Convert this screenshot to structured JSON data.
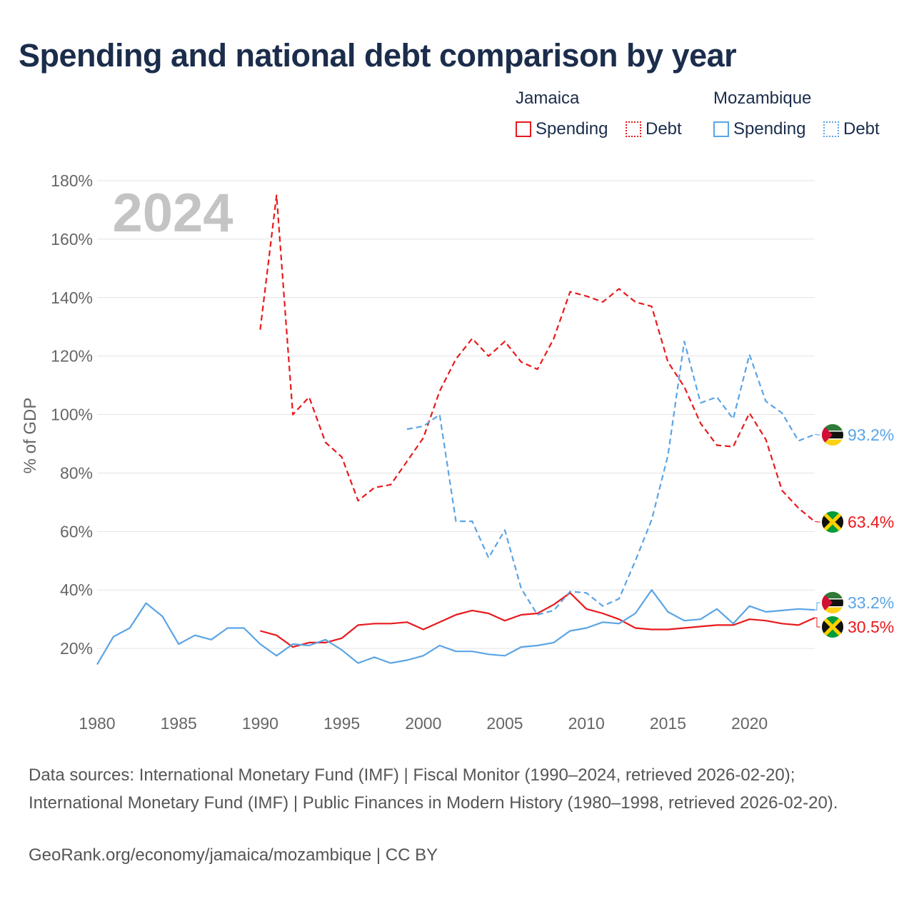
{
  "title": "Spending and national debt comparison by year",
  "legend": {
    "jamaica": {
      "label": "Jamaica",
      "spending": "Spending",
      "debt": "Debt"
    },
    "mozambique": {
      "label": "Mozambique",
      "spending": "Spending",
      "debt": "Debt"
    }
  },
  "colors": {
    "jamaica": "#e8191c",
    "mozambique": "#5ba4e5",
    "text": "#1b2d4b",
    "axis": "#666666",
    "grid": "#e3e3e3",
    "year": "#c4c4c4"
  },
  "footer": {
    "sources": "Data sources: International Monetary Fund (IMF) | Fiscal Monitor (1990–2024, retrieved 2026-02-20); International Monetary Fund (IMF) | Public Finances in Modern History (1980–1998, retrieved 2026-02-20).",
    "credit": "GeoRank.org/economy/jamaica/mozambique | CC BY"
  },
  "chart_data": {
    "type": "line",
    "ylabel": "% of GDP",
    "xlim": [
      1980,
      2024
    ],
    "ylim": [
      0,
      180
    ],
    "yticks": [
      20,
      40,
      60,
      80,
      100,
      120,
      140,
      160,
      180
    ],
    "ytick_labels": [
      "20%",
      "40%",
      "60%",
      "80%",
      "100%",
      "120%",
      "140%",
      "160%",
      "180%"
    ],
    "xticks": [
      1980,
      1985,
      1990,
      1995,
      2000,
      2005,
      2010,
      2015,
      2020
    ],
    "xtick_labels": [
      "1980",
      "1985",
      "1990",
      "1995",
      "2000",
      "2005",
      "2010",
      "2015",
      "2020"
    ],
    "year_label": "2024",
    "series": [
      {
        "name": "Jamaica Debt",
        "country": "jamaica",
        "style": "dashed",
        "x": [
          1990,
          1991,
          1992,
          1993,
          1994,
          1995,
          1996,
          1997,
          1998,
          1999,
          2000,
          2001,
          2002,
          2003,
          2004,
          2005,
          2006,
          2007,
          2008,
          2009,
          2010,
          2011,
          2012,
          2013,
          2014,
          2015,
          2016,
          2017,
          2018,
          2019,
          2020,
          2021,
          2022,
          2023,
          2024
        ],
        "values": [
          129,
          175,
          100,
          106,
          90.5,
          85.5,
          70.5,
          75,
          76,
          84,
          92,
          108,
          119,
          126,
          120,
          125,
          118,
          115.5,
          126,
          142,
          140.5,
          138.5,
          143,
          138.5,
          137,
          118,
          109.5,
          97,
          89.5,
          89,
          100.5,
          91.5,
          74,
          68,
          63.4
        ],
        "end_label": "63.4%"
      },
      {
        "name": "Jamaica Spending",
        "country": "jamaica",
        "style": "solid",
        "x": [
          1990,
          1991,
          1992,
          1993,
          1994,
          1995,
          1996,
          1997,
          1998,
          1999,
          2000,
          2001,
          2002,
          2003,
          2004,
          2005,
          2006,
          2007,
          2008,
          2009,
          2010,
          2011,
          2012,
          2013,
          2014,
          2015,
          2016,
          2017,
          2018,
          2019,
          2020,
          2021,
          2022,
          2023,
          2024
        ],
        "values": [
          26,
          24.5,
          20.5,
          22,
          22,
          23.5,
          28,
          28.5,
          28.5,
          29,
          26.5,
          29,
          31.5,
          33,
          32,
          29.5,
          31.5,
          32,
          35,
          39,
          33.5,
          32,
          30,
          27,
          26.5,
          26.5,
          27,
          27.5,
          28,
          28,
          30,
          29.5,
          28.5,
          28,
          30.5
        ],
        "end_label": "30.5%"
      },
      {
        "name": "Mozambique Debt",
        "country": "mozambique",
        "style": "dashed",
        "x": [
          1999,
          2000,
          2001,
          2002,
          2003,
          2004,
          2005,
          2006,
          2007,
          2008,
          2009,
          2010,
          2011,
          2012,
          2013,
          2014,
          2015,
          2016,
          2017,
          2018,
          2019,
          2020,
          2021,
          2022,
          2023,
          2024
        ],
        "values": [
          95,
          96,
          100,
          63.5,
          63.5,
          51,
          60.5,
          40.5,
          31.5,
          33,
          39.5,
          39,
          34.5,
          37,
          50,
          64,
          86,
          125,
          104,
          106,
          98.5,
          120.5,
          104.5,
          100.5,
          91,
          93.2
        ],
        "end_label": "93.2%"
      },
      {
        "name": "Mozambique Spending",
        "country": "mozambique",
        "style": "solid",
        "x": [
          1980,
          1981,
          1982,
          1983,
          1984,
          1985,
          1986,
          1987,
          1988,
          1989,
          1990,
          1991,
          1992,
          1993,
          1994,
          1995,
          1996,
          1997,
          1998,
          1999,
          2000,
          2001,
          2002,
          2003,
          2004,
          2005,
          2006,
          2007,
          2008,
          2009,
          2010,
          2011,
          2012,
          2013,
          2014,
          2015,
          2016,
          2017,
          2018,
          2019,
          2020,
          2021,
          2022,
          2023,
          2024
        ],
        "values": [
          14.5,
          24,
          27,
          35.5,
          31,
          21.5,
          24.5,
          23,
          27,
          27,
          21.5,
          17.5,
          21.5,
          21,
          23,
          19.5,
          15,
          17,
          15,
          16,
          17.5,
          21,
          19,
          19,
          18,
          17.5,
          20.5,
          21,
          22,
          26,
          27,
          29,
          28.5,
          32,
          40,
          32.5,
          29.5,
          30,
          33.5,
          28.5,
          34.5,
          32.5,
          33,
          33.5,
          33.2
        ],
        "end_label": "33.2%"
      }
    ]
  }
}
